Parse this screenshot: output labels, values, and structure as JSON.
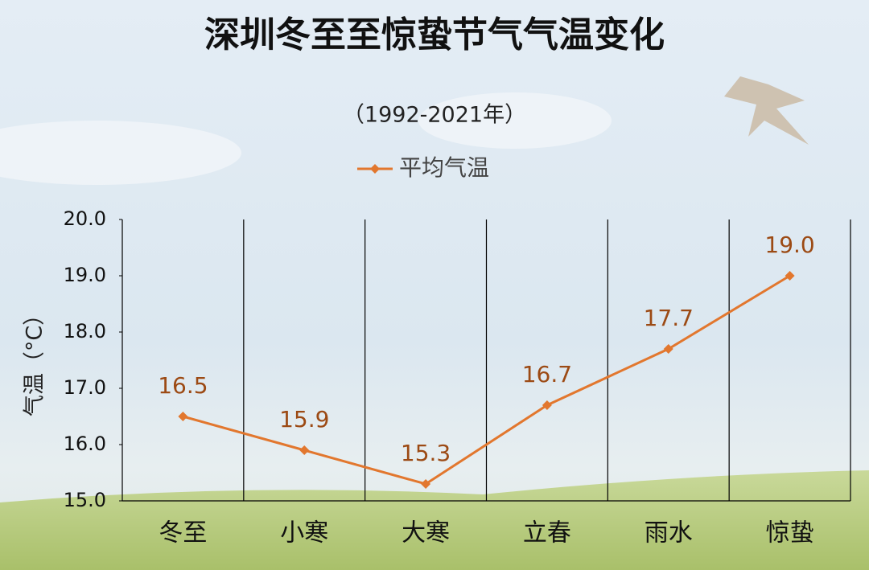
{
  "chart_data": {
    "type": "line",
    "title": "深圳冬至至惊蛰节气气温变化",
    "subtitle": "（1992-2021年）",
    "y_label": "气温（°C）",
    "categories": [
      "冬至",
      "小寒",
      "大寒",
      "立春",
      "雨水",
      "惊蛰"
    ],
    "series": [
      {
        "name": "平均气温",
        "color": "#e2772e",
        "values": [
          16.5,
          15.9,
          15.3,
          16.7,
          17.7,
          19.0
        ],
        "value_labels": [
          "16.5",
          "15.9",
          "15.3",
          "16.7",
          "17.7",
          "19.0"
        ]
      }
    ],
    "ylim": [
      15,
      20
    ],
    "yticks": [
      {
        "value": 15,
        "label": "15.0"
      },
      {
        "value": 16,
        "label": "16.0"
      },
      {
        "value": 17,
        "label": "17.0"
      },
      {
        "value": 18,
        "label": "18.0"
      },
      {
        "value": 19,
        "label": "19.0"
      },
      {
        "value": 20,
        "label": "20.0"
      }
    ],
    "legend": "top"
  }
}
